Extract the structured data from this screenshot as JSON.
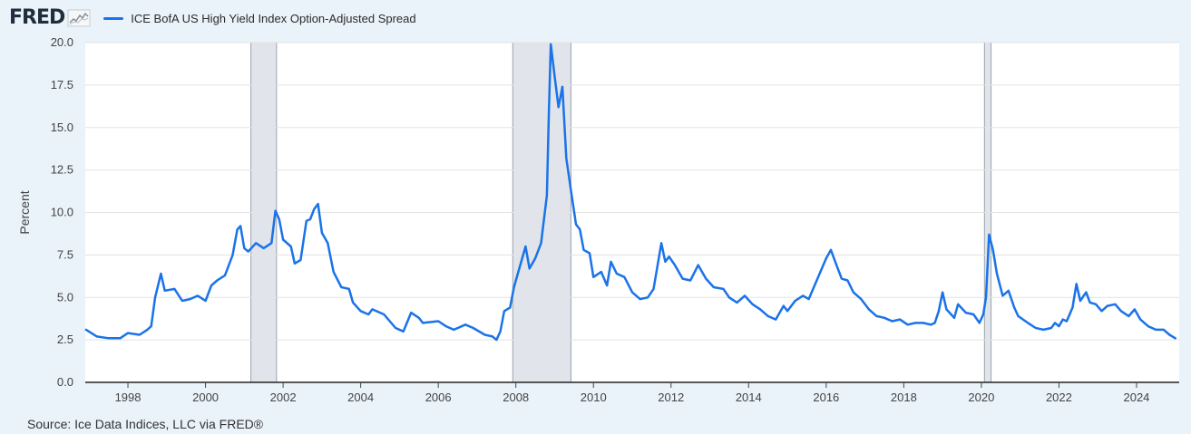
{
  "header": {
    "logo_text": "FRED",
    "series_title": "ICE BofA US High Yield Index Option-Adjusted Spread"
  },
  "source": "Source: Ice Data Indices, LLC via FRED®",
  "colors": {
    "line": "#1a73e8",
    "recession": "#e1e5eb",
    "background": "#eaf2fa",
    "plot_background": "#ffffff"
  },
  "chart_data": {
    "type": "line",
    "title": "",
    "xlabel": "",
    "ylabel": "Percent",
    "ylim": [
      0,
      20
    ],
    "xlim": [
      1996.9,
      2025.1
    ],
    "yticks": [
      "0.0",
      "2.5",
      "5.0",
      "7.5",
      "10.0",
      "12.5",
      "15.0",
      "17.5",
      "20.0"
    ],
    "xticks": [
      "1998",
      "2000",
      "2002",
      "2004",
      "2006",
      "2008",
      "2010",
      "2012",
      "2014",
      "2016",
      "2018",
      "2020",
      "2022",
      "2024"
    ],
    "grid": "horizontal",
    "recessions": [
      [
        2001.17,
        2001.83
      ],
      [
        2007.92,
        2009.42
      ],
      [
        2020.08,
        2020.25
      ]
    ],
    "series": [
      {
        "name": "ICE BofA US High Yield Index Option-Adjusted Spread",
        "points": [
          [
            1996.92,
            3.1
          ],
          [
            1997.2,
            2.7
          ],
          [
            1997.5,
            2.6
          ],
          [
            1997.8,
            2.6
          ],
          [
            1998.0,
            2.9
          ],
          [
            1998.3,
            2.8
          ],
          [
            1998.5,
            3.1
          ],
          [
            1998.6,
            3.3
          ],
          [
            1998.7,
            5.0
          ],
          [
            1998.85,
            6.4
          ],
          [
            1998.95,
            5.4
          ],
          [
            1999.2,
            5.5
          ],
          [
            1999.4,
            4.8
          ],
          [
            1999.6,
            4.9
          ],
          [
            1999.8,
            5.1
          ],
          [
            2000.0,
            4.8
          ],
          [
            2000.15,
            5.7
          ],
          [
            2000.3,
            6.0
          ],
          [
            2000.5,
            6.3
          ],
          [
            2000.7,
            7.5
          ],
          [
            2000.82,
            9.0
          ],
          [
            2000.9,
            9.2
          ],
          [
            2001.0,
            7.9
          ],
          [
            2001.1,
            7.7
          ],
          [
            2001.3,
            8.2
          ],
          [
            2001.5,
            7.9
          ],
          [
            2001.7,
            8.2
          ],
          [
            2001.8,
            10.1
          ],
          [
            2001.9,
            9.6
          ],
          [
            2002.0,
            8.4
          ],
          [
            2002.2,
            8.0
          ],
          [
            2002.3,
            7.0
          ],
          [
            2002.45,
            7.2
          ],
          [
            2002.6,
            9.5
          ],
          [
            2002.7,
            9.6
          ],
          [
            2002.8,
            10.2
          ],
          [
            2002.9,
            10.5
          ],
          [
            2003.0,
            8.8
          ],
          [
            2003.15,
            8.2
          ],
          [
            2003.3,
            6.5
          ],
          [
            2003.5,
            5.6
          ],
          [
            2003.7,
            5.5
          ],
          [
            2003.8,
            4.7
          ],
          [
            2004.0,
            4.2
          ],
          [
            2004.2,
            4.0
          ],
          [
            2004.3,
            4.3
          ],
          [
            2004.6,
            4.0
          ],
          [
            2004.9,
            3.2
          ],
          [
            2005.1,
            3.0
          ],
          [
            2005.3,
            4.1
          ],
          [
            2005.5,
            3.8
          ],
          [
            2005.6,
            3.5
          ],
          [
            2006.0,
            3.6
          ],
          [
            2006.2,
            3.3
          ],
          [
            2006.4,
            3.1
          ],
          [
            2006.7,
            3.4
          ],
          [
            2006.9,
            3.2
          ],
          [
            2007.2,
            2.8
          ],
          [
            2007.4,
            2.7
          ],
          [
            2007.5,
            2.5
          ],
          [
            2007.6,
            3.0
          ],
          [
            2007.7,
            4.2
          ],
          [
            2007.85,
            4.4
          ],
          [
            2007.95,
            5.6
          ],
          [
            2008.1,
            6.8
          ],
          [
            2008.25,
            8.0
          ],
          [
            2008.35,
            6.7
          ],
          [
            2008.5,
            7.3
          ],
          [
            2008.65,
            8.2
          ],
          [
            2008.8,
            11.0
          ],
          [
            2008.85,
            15.9
          ],
          [
            2008.9,
            19.9
          ],
          [
            2009.0,
            18.0
          ],
          [
            2009.1,
            16.2
          ],
          [
            2009.2,
            17.4
          ],
          [
            2009.3,
            13.2
          ],
          [
            2009.4,
            11.6
          ],
          [
            2009.55,
            9.3
          ],
          [
            2009.65,
            9.0
          ],
          [
            2009.75,
            7.8
          ],
          [
            2009.9,
            7.6
          ],
          [
            2010.0,
            6.2
          ],
          [
            2010.2,
            6.5
          ],
          [
            2010.35,
            5.7
          ],
          [
            2010.45,
            7.1
          ],
          [
            2010.6,
            6.4
          ],
          [
            2010.8,
            6.2
          ],
          [
            2011.0,
            5.3
          ],
          [
            2011.2,
            4.9
          ],
          [
            2011.4,
            5.0
          ],
          [
            2011.55,
            5.5
          ],
          [
            2011.75,
            8.2
          ],
          [
            2011.85,
            7.1
          ],
          [
            2011.95,
            7.4
          ],
          [
            2012.1,
            6.9
          ],
          [
            2012.3,
            6.1
          ],
          [
            2012.5,
            6.0
          ],
          [
            2012.7,
            6.9
          ],
          [
            2012.9,
            6.1
          ],
          [
            2013.1,
            5.6
          ],
          [
            2013.35,
            5.5
          ],
          [
            2013.5,
            5.0
          ],
          [
            2013.7,
            4.7
          ],
          [
            2013.9,
            5.1
          ],
          [
            2014.1,
            4.6
          ],
          [
            2014.3,
            4.3
          ],
          [
            2014.5,
            3.9
          ],
          [
            2014.7,
            3.7
          ],
          [
            2014.9,
            4.5
          ],
          [
            2015.0,
            4.2
          ],
          [
            2015.2,
            4.8
          ],
          [
            2015.4,
            5.1
          ],
          [
            2015.55,
            4.9
          ],
          [
            2015.7,
            5.7
          ],
          [
            2015.85,
            6.5
          ],
          [
            2016.0,
            7.3
          ],
          [
            2016.12,
            7.8
          ],
          [
            2016.25,
            7.0
          ],
          [
            2016.4,
            6.1
          ],
          [
            2016.55,
            6.0
          ],
          [
            2016.7,
            5.3
          ],
          [
            2016.9,
            4.9
          ],
          [
            2017.1,
            4.3
          ],
          [
            2017.3,
            3.9
          ],
          [
            2017.5,
            3.8
          ],
          [
            2017.7,
            3.6
          ],
          [
            2017.9,
            3.7
          ],
          [
            2018.1,
            3.4
          ],
          [
            2018.3,
            3.5
          ],
          [
            2018.5,
            3.5
          ],
          [
            2018.7,
            3.4
          ],
          [
            2018.8,
            3.5
          ],
          [
            2018.9,
            4.2
          ],
          [
            2019.0,
            5.3
          ],
          [
            2019.1,
            4.3
          ],
          [
            2019.3,
            3.8
          ],
          [
            2019.4,
            4.6
          ],
          [
            2019.6,
            4.1
          ],
          [
            2019.8,
            4.0
          ],
          [
            2019.95,
            3.5
          ],
          [
            2020.05,
            4.0
          ],
          [
            2020.12,
            5.0
          ],
          [
            2020.2,
            8.7
          ],
          [
            2020.3,
            7.8
          ],
          [
            2020.4,
            6.4
          ],
          [
            2020.55,
            5.1
          ],
          [
            2020.7,
            5.4
          ],
          [
            2020.85,
            4.4
          ],
          [
            2020.95,
            3.9
          ],
          [
            2021.2,
            3.5
          ],
          [
            2021.4,
            3.2
          ],
          [
            2021.6,
            3.1
          ],
          [
            2021.8,
            3.2
          ],
          [
            2021.9,
            3.5
          ],
          [
            2022.0,
            3.3
          ],
          [
            2022.1,
            3.7
          ],
          [
            2022.2,
            3.6
          ],
          [
            2022.35,
            4.4
          ],
          [
            2022.45,
            5.8
          ],
          [
            2022.55,
            4.8
          ],
          [
            2022.7,
            5.3
          ],
          [
            2022.8,
            4.7
          ],
          [
            2022.95,
            4.6
          ],
          [
            2023.1,
            4.2
          ],
          [
            2023.25,
            4.5
          ],
          [
            2023.45,
            4.6
          ],
          [
            2023.6,
            4.2
          ],
          [
            2023.8,
            3.9
          ],
          [
            2023.95,
            4.3
          ],
          [
            2024.1,
            3.7
          ],
          [
            2024.3,
            3.3
          ],
          [
            2024.5,
            3.1
          ],
          [
            2024.7,
            3.1
          ],
          [
            2024.85,
            2.8
          ],
          [
            2025.0,
            2.6
          ]
        ]
      }
    ]
  }
}
